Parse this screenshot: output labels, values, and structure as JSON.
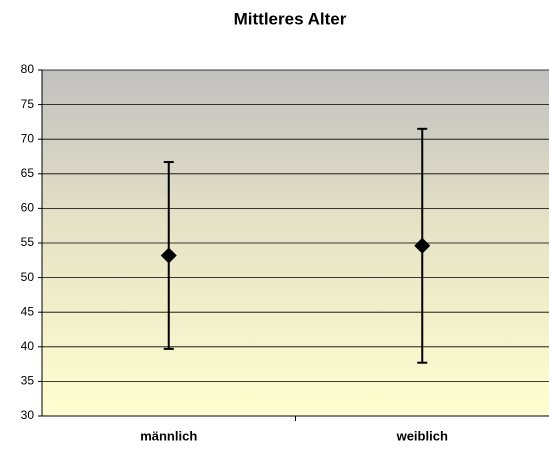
{
  "chart_data": {
    "type": "errorbar",
    "title": "Mittleres Alter",
    "categories": [
      "männlich",
      "weiblich"
    ],
    "values": [
      53.2,
      54.6
    ],
    "errors": [
      13.5,
      16.9
    ],
    "color": "#000000",
    "ylim": [
      30,
      80
    ],
    "yticks": [
      30,
      35,
      40,
      45,
      50,
      55,
      60,
      65,
      70,
      75,
      80
    ],
    "grid": true
  }
}
